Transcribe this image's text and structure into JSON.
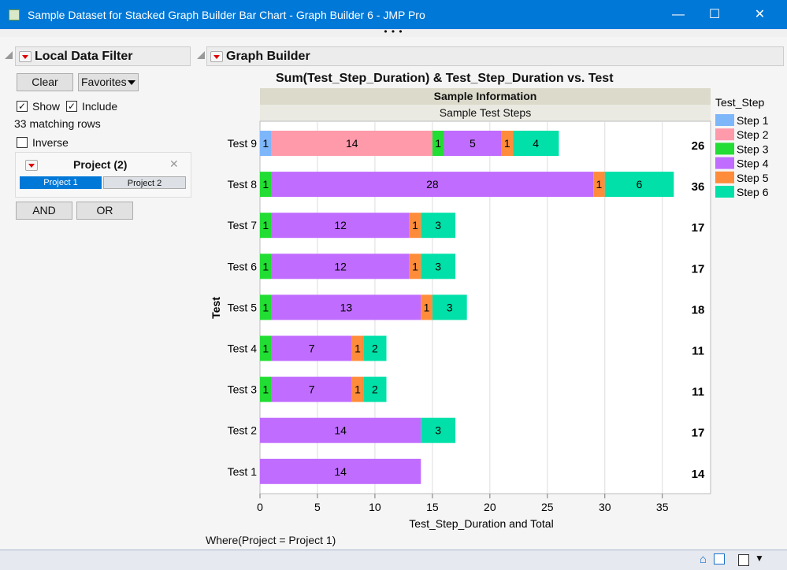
{
  "window": {
    "title": "Sample Dataset for Stacked Graph Builder Bar Chart - Graph Builder 6 - JMP Pro",
    "minimize": "—",
    "maximize": "☐",
    "close": "✕",
    "more": "• • •"
  },
  "filter": {
    "title": "Local Data Filter",
    "clear": "Clear",
    "favorites": "Favorites",
    "show": "Show",
    "include": "Include",
    "matching": "33 matching rows",
    "inverse": "Inverse",
    "column_title": "Project (2)",
    "close": "✕",
    "levels": [
      "Project 1",
      "Project 2"
    ],
    "selected": "Project 1",
    "and": "AND",
    "or": "OR"
  },
  "graph": {
    "outline_title": "Graph Builder",
    "where": "Where(Project = Project 1)"
  },
  "chart_data": {
    "type": "bar",
    "orientation": "horizontal",
    "stacked": true,
    "title": "Sum(Test_Step_Duration) & Test_Step_Duration vs. Test",
    "header1": "Sample Information",
    "header2": "Sample Test Steps",
    "xlabel": "Test_Step_Duration and Total",
    "ylabel": "Test",
    "xlim": [
      0,
      39.2
    ],
    "xticks": [
      0,
      5,
      10,
      15,
      20,
      25,
      30,
      35
    ],
    "legend_title": "Test_Step",
    "legend_position": "right",
    "series": [
      {
        "name": "Step 1",
        "color": "#7eb6fa"
      },
      {
        "name": "Step 2",
        "color": "#ff9aab"
      },
      {
        "name": "Step 3",
        "color": "#22dd33"
      },
      {
        "name": "Step 4",
        "color": "#c06cff"
      },
      {
        "name": "Step 5",
        "color": "#ff8c3a"
      },
      {
        "name": "Step 6",
        "color": "#00e0a8"
      }
    ],
    "rows": [
      {
        "label": "Test 9",
        "total": "26",
        "values": [
          1,
          14,
          1,
          5,
          1,
          4
        ]
      },
      {
        "label": "Test 8",
        "total": "36",
        "values": [
          0,
          0,
          1,
          28,
          1,
          6
        ]
      },
      {
        "label": "Test 7",
        "total": "17",
        "values": [
          0,
          0,
          1,
          12,
          1,
          3
        ]
      },
      {
        "label": "Test 6",
        "total": "17",
        "values": [
          0,
          0,
          1,
          12,
          1,
          3
        ]
      },
      {
        "label": "Test 5",
        "total": "18",
        "values": [
          0,
          0,
          1,
          13,
          1,
          3
        ]
      },
      {
        "label": "Test 4",
        "total": "11",
        "values": [
          0,
          0,
          1,
          7,
          1,
          2
        ]
      },
      {
        "label": "Test 3",
        "total": "11",
        "values": [
          0,
          0,
          1,
          7,
          1,
          2
        ]
      },
      {
        "label": "Test 2",
        "total": "17",
        "values": [
          0,
          0,
          0,
          14,
          0,
          3
        ]
      },
      {
        "label": "Test 1",
        "total": "14",
        "values": [
          0,
          0,
          0,
          14,
          0,
          0
        ]
      }
    ]
  }
}
